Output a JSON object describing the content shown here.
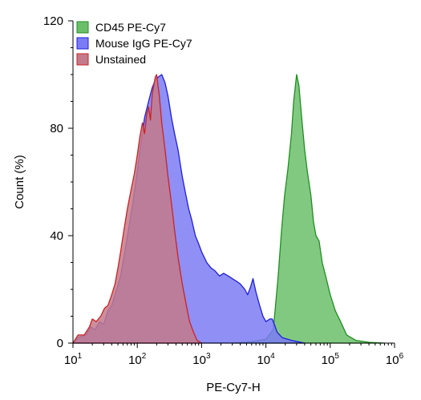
{
  "chart_data": {
    "type": "area",
    "xlabel": "PE-Cy7-H",
    "ylabel": "Count (%)",
    "xscale": "log",
    "xlim": [
      10,
      1000000
    ],
    "ylim": [
      0,
      120
    ],
    "x_ticks": [
      {
        "base": "10",
        "exp": "1"
      },
      {
        "base": "10",
        "exp": "2"
      },
      {
        "base": "10",
        "exp": "3"
      },
      {
        "base": "10",
        "exp": "4"
      },
      {
        "base": "10",
        "exp": "5"
      },
      {
        "base": "10",
        "exp": "6"
      }
    ],
    "y_ticks": [
      "0",
      "40",
      "80",
      "120"
    ],
    "legend_position": "top-left",
    "series": [
      {
        "name": "CD45 PE-Cy7",
        "fill": "#6bbf6b",
        "stroke": "#1f8f1f",
        "points": [
          [
            3000,
            0
          ],
          [
            6000,
            0.5
          ],
          [
            10000,
            1.5
          ],
          [
            13000,
            5
          ],
          [
            14000,
            13
          ],
          [
            15500,
            25
          ],
          [
            17500,
            42
          ],
          [
            19500,
            55
          ],
          [
            22000,
            65
          ],
          [
            25000,
            78
          ],
          [
            27000,
            90
          ],
          [
            30000,
            100
          ],
          [
            32500,
            96
          ],
          [
            36000,
            84
          ],
          [
            40000,
            72
          ],
          [
            44000,
            64
          ],
          [
            50000,
            55
          ],
          [
            55000,
            45
          ],
          [
            60000,
            40
          ],
          [
            67000,
            38
          ],
          [
            75000,
            30
          ],
          [
            85000,
            25
          ],
          [
            100000,
            18
          ],
          [
            120000,
            12
          ],
          [
            145000,
            8
          ],
          [
            180000,
            3
          ],
          [
            250000,
            1
          ],
          [
            400000,
            0.3
          ],
          [
            700000,
            0
          ]
        ]
      },
      {
        "name": "Mouse IgG PE-Cy7",
        "fill": "#7b7bf5",
        "stroke": "#1f1fd8",
        "points": [
          [
            10,
            0
          ],
          [
            12,
            2
          ],
          [
            16,
            3
          ],
          [
            19,
            6
          ],
          [
            22,
            5
          ],
          [
            26,
            8
          ],
          [
            30,
            7
          ],
          [
            35,
            12
          ],
          [
            40,
            14
          ],
          [
            45,
            18
          ],
          [
            55,
            25
          ],
          [
            65,
            35
          ],
          [
            75,
            44
          ],
          [
            85,
            52
          ],
          [
            95,
            60
          ],
          [
            110,
            72
          ],
          [
            130,
            84
          ],
          [
            150,
            90
          ],
          [
            170,
            95
          ],
          [
            190,
            98
          ],
          [
            210,
            99
          ],
          [
            240,
            100
          ],
          [
            270,
            97
          ],
          [
            300,
            92
          ],
          [
            340,
            84
          ],
          [
            380,
            78
          ],
          [
            430,
            72
          ],
          [
            500,
            62
          ],
          [
            560,
            56
          ],
          [
            630,
            50
          ],
          [
            700,
            46
          ],
          [
            800,
            40
          ],
          [
            900,
            37
          ],
          [
            1000,
            34
          ],
          [
            1200,
            30
          ],
          [
            1400,
            28
          ],
          [
            1600,
            27
          ],
          [
            1900,
            25
          ],
          [
            2200,
            26
          ],
          [
            2600,
            25
          ],
          [
            3000,
            24
          ],
          [
            3500,
            23
          ],
          [
            4000,
            22
          ],
          [
            4700,
            20
          ],
          [
            5200,
            18
          ],
          [
            5800,
            21
          ],
          [
            6300,
            24
          ],
          [
            7000,
            19
          ],
          [
            8000,
            14
          ],
          [
            9000,
            10
          ],
          [
            10000,
            8
          ],
          [
            11500,
            9
          ],
          [
            12500,
            9
          ],
          [
            13500,
            7
          ],
          [
            15000,
            4
          ],
          [
            18000,
            2
          ],
          [
            25000,
            1
          ],
          [
            40000,
            0
          ]
        ]
      },
      {
        "name": "Unstained",
        "fill": "#c47a8a",
        "stroke": "#cc2222",
        "points": [
          [
            10,
            0
          ],
          [
            12,
            3
          ],
          [
            15,
            3
          ],
          [
            18,
            6
          ],
          [
            20,
            9
          ],
          [
            23,
            8
          ],
          [
            27,
            10
          ],
          [
            31,
            13
          ],
          [
            35,
            14
          ],
          [
            40,
            18
          ],
          [
            45,
            22
          ],
          [
            50,
            28
          ],
          [
            55,
            34
          ],
          [
            62,
            42
          ],
          [
            70,
            50
          ],
          [
            80,
            57
          ],
          [
            90,
            63
          ],
          [
            100,
            70
          ],
          [
            110,
            77
          ],
          [
            120,
            82
          ],
          [
            130,
            78
          ],
          [
            140,
            85
          ],
          [
            150,
            88
          ],
          [
            160,
            83
          ],
          [
            170,
            92
          ],
          [
            180,
            96
          ],
          [
            190,
            99
          ],
          [
            200,
            100
          ],
          [
            220,
            92
          ],
          [
            240,
            82
          ],
          [
            270,
            72
          ],
          [
            300,
            62
          ],
          [
            340,
            52
          ],
          [
            380,
            42
          ],
          [
            430,
            32
          ],
          [
            500,
            22
          ],
          [
            580,
            14
          ],
          [
            650,
            8
          ],
          [
            750,
            4
          ],
          [
            850,
            1
          ],
          [
            1000,
            0
          ]
        ]
      }
    ]
  }
}
